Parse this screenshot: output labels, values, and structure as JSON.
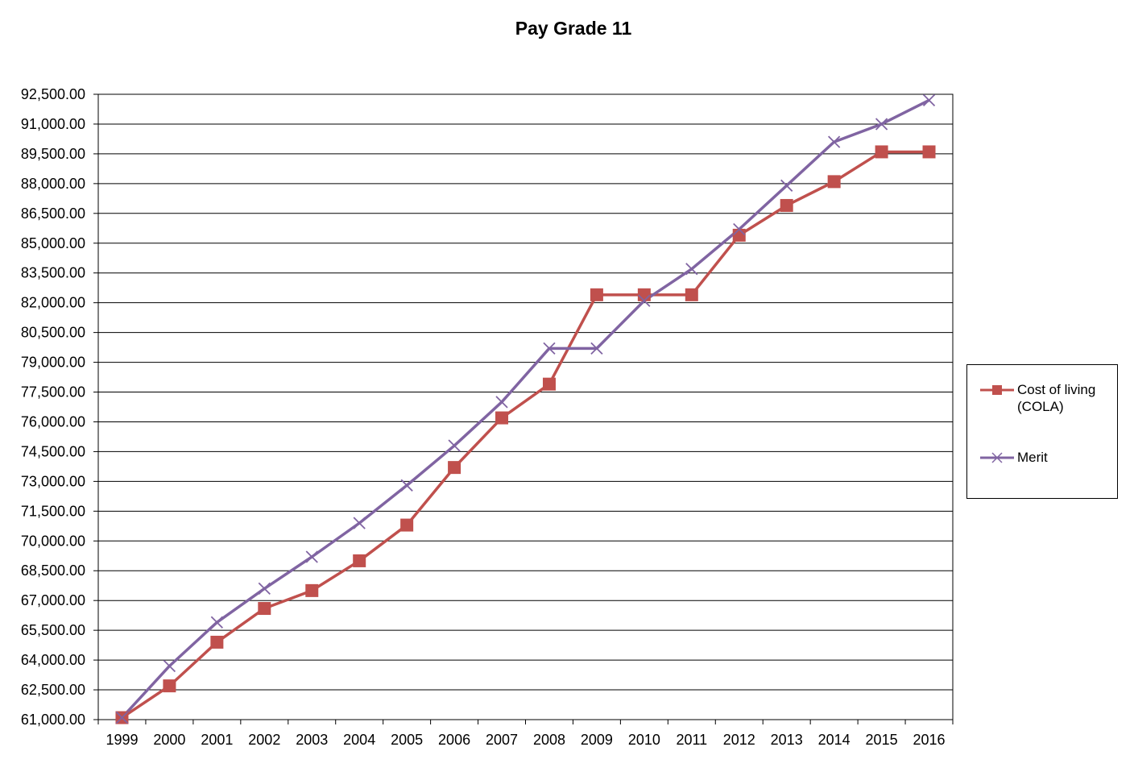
{
  "chart_data": {
    "type": "line",
    "title": "Pay Grade 11",
    "categories": [
      "1999",
      "2000",
      "2001",
      "2002",
      "2003",
      "2004",
      "2005",
      "2006",
      "2007",
      "2008",
      "2009",
      "2010",
      "2011",
      "2012",
      "2013",
      "2014",
      "2015",
      "2016"
    ],
    "series": [
      {
        "name": "Cost of living (COLA)",
        "color": "#c0504d",
        "marker": "square",
        "values": [
          61100,
          62700,
          64900,
          66600,
          67500,
          69000,
          70800,
          73700,
          76200,
          77900,
          82400,
          82400,
          82400,
          85400,
          86900,
          88100,
          89600,
          89600
        ]
      },
      {
        "name": "Merit",
        "color": "#8064a2",
        "marker": "x",
        "values": [
          61100,
          63700,
          65900,
          67600,
          69200,
          70900,
          72800,
          74800,
          77000,
          79700,
          79700,
          82100,
          83700,
          85700,
          87900,
          90100,
          91000,
          92200
        ]
      }
    ],
    "ylim": [
      61000,
      92500
    ],
    "ytick_step": 1500,
    "ytick_labels": [
      "61,000.00",
      "62,500.00",
      "64,000.00",
      "65,500.00",
      "67,000.00",
      "68,500.00",
      "70,000.00",
      "71,500.00",
      "73,000.00",
      "74,500.00",
      "76,000.00",
      "77,500.00",
      "79,000.00",
      "80,500.00",
      "82,000.00",
      "83,500.00",
      "85,000.00",
      "86,500.00",
      "88,000.00",
      "89,500.00",
      "91,000.00",
      "92,500.00"
    ],
    "grid": true,
    "legend_position": "right"
  }
}
